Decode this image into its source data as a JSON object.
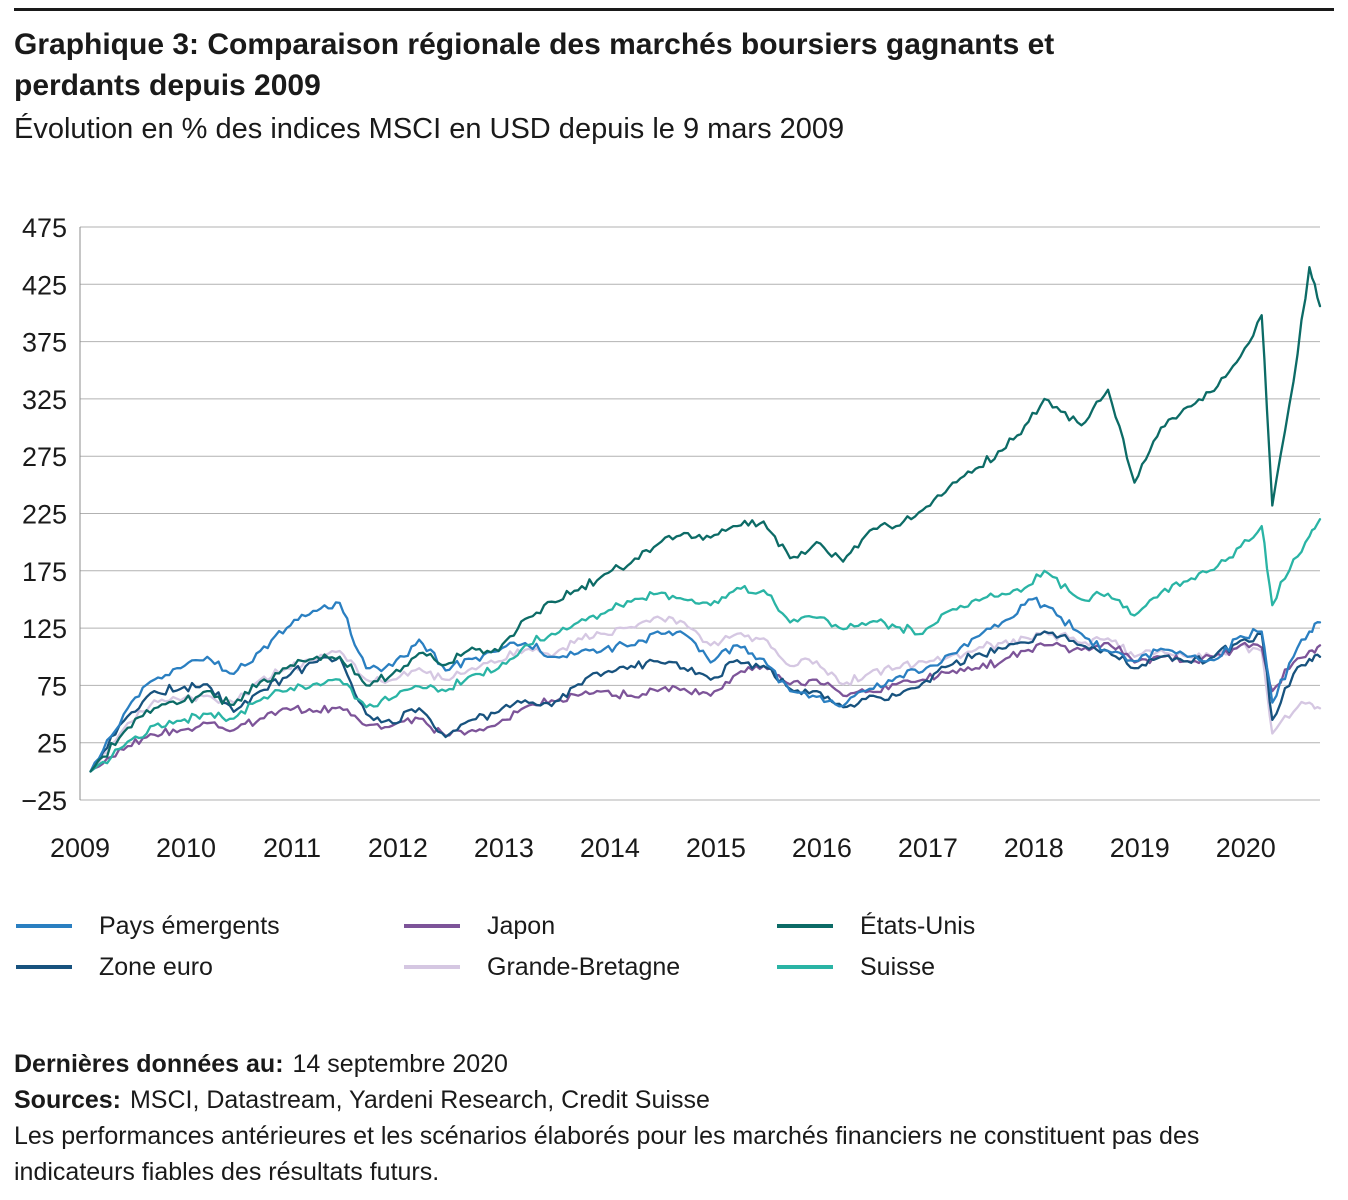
{
  "page": {
    "title_lines": [
      "Graphique 3: Comparaison régionale des marchés boursiers gagnants et",
      "perdants depuis 2009"
    ],
    "subtitle": "Évolution en % des indices MSCI en USD depuis le 9 mars 2009"
  },
  "chart_data": {
    "type": "line",
    "title": "Graphique 3: Comparaison régionale des marchés boursiers gagnants et perdants depuis 2009",
    "subtitle": "Évolution en % des indices MSCI en USD depuis le 9 mars 2009",
    "xlabel": "",
    "ylabel": "",
    "unit": "%",
    "grid": true,
    "legend_position": "bottom",
    "xlim": [
      2009,
      2020.7
    ],
    "ylim": [
      -25,
      475
    ],
    "yticks": [
      -25,
      25,
      75,
      125,
      175,
      225,
      275,
      325,
      375,
      425,
      475
    ],
    "xticks": [
      2009,
      2010,
      2011,
      2012,
      2013,
      2014,
      2015,
      2016,
      2017,
      2018,
      2019,
      2020
    ],
    "x": [
      2009.1,
      2009.45,
      2009.7,
      2009.95,
      2010.2,
      2010.45,
      2010.7,
      2010.95,
      2011.2,
      2011.45,
      2011.7,
      2011.95,
      2012.2,
      2012.45,
      2012.7,
      2012.95,
      2013.2,
      2013.45,
      2013.7,
      2013.95,
      2014.2,
      2014.45,
      2014.7,
      2014.95,
      2015.2,
      2015.45,
      2015.7,
      2015.95,
      2016.2,
      2016.45,
      2016.7,
      2016.95,
      2017.2,
      2017.45,
      2017.7,
      2017.95,
      2018.1,
      2018.45,
      2018.7,
      2018.95,
      2019.2,
      2019.45,
      2019.7,
      2019.95,
      2020.15,
      2020.25,
      2020.45,
      2020.6,
      2020.7
    ],
    "series": [
      {
        "name": "Pays émergents",
        "color": "#2a7fc1",
        "values": [
          0,
          55,
          80,
          90,
          100,
          85,
          105,
          125,
          140,
          147,
          90,
          92,
          115,
          88,
          98,
          105,
          112,
          100,
          103,
          107,
          110,
          122,
          120,
          95,
          110,
          98,
          70,
          65,
          57,
          72,
          82,
          87,
          102,
          117,
          130,
          150,
          145,
          120,
          105,
          96,
          107,
          100,
          97,
          118,
          122,
          60,
          100,
          122,
          130
        ]
      },
      {
        "name": "Zone euro",
        "color": "#17527e",
        "values": [
          0,
          48,
          70,
          72,
          76,
          52,
          70,
          82,
          95,
          100,
          50,
          42,
          55,
          30,
          45,
          52,
          62,
          57,
          76,
          86,
          92,
          96,
          90,
          80,
          97,
          92,
          72,
          70,
          56,
          66,
          66,
          77,
          92,
          102,
          107,
          112,
          122,
          110,
          105,
          90,
          100,
          96,
          100,
          114,
          120,
          45,
          85,
          98,
          100
        ]
      },
      {
        "name": "Japon",
        "color": "#7d5499",
        "values": [
          0,
          22,
          32,
          36,
          42,
          36,
          46,
          55,
          52,
          56,
          40,
          40,
          46,
          31,
          36,
          42,
          56,
          62,
          66,
          70,
          66,
          70,
          72,
          66,
          85,
          92,
          76,
          80,
          66,
          70,
          76,
          80,
          86,
          90,
          96,
          106,
          110,
          106,
          112,
          95,
          100,
          96,
          100,
          110,
          108,
          70,
          95,
          105,
          110
        ]
      },
      {
        "name": "Grande-Bretagne",
        "color": "#d5c7e2",
        "values": [
          0,
          42,
          62,
          62,
          66,
          60,
          80,
          90,
          97,
          105,
          80,
          80,
          90,
          80,
          90,
          96,
          106,
          100,
          116,
          120,
          126,
          135,
          130,
          110,
          120,
          116,
          92,
          96,
          76,
          86,
          90,
          96,
          100,
          106,
          112,
          116,
          122,
          112,
          116,
          100,
          106,
          100,
          100,
          110,
          105,
          33,
          52,
          60,
          55
        ]
      },
      {
        "name": "États-Unis",
        "color": "#0c6b66",
        "values": [
          0,
          38,
          55,
          60,
          70,
          58,
          78,
          90,
          98,
          100,
          75,
          85,
          103,
          93,
          108,
          105,
          133,
          148,
          158,
          172,
          182,
          198,
          208,
          204,
          214,
          218,
          186,
          200,
          183,
          210,
          214,
          228,
          248,
          264,
          280,
          305,
          325,
          302,
          333,
          252,
          300,
          318,
          332,
          362,
          398,
          232,
          340,
          440,
          406
        ]
      },
      {
        "name": "Suisse",
        "color": "#2ab4a5",
        "values": [
          0,
          26,
          40,
          44,
          50,
          46,
          62,
          70,
          76,
          80,
          56,
          64,
          74,
          70,
          84,
          90,
          110,
          120,
          130,
          138,
          148,
          155,
          150,
          145,
          160,
          158,
          130,
          134,
          124,
          130,
          126,
          120,
          140,
          150,
          155,
          162,
          175,
          150,
          155,
          136,
          156,
          166,
          176,
          196,
          214,
          145,
          185,
          205,
          220
        ]
      }
    ]
  },
  "footer": {
    "last_data_label": "Dernières données au:",
    "last_data_value": "14 septembre 2020",
    "sources_label": "Sources:",
    "sources_value": "MSCI, Datastream, Yardeni Research, Credit Suisse",
    "disclaimer_lines": [
      "Les performances antérieures et les scénarios élaborés pour les marchés financiers ne constituent pas des",
      "indicateurs fiables des résultats futurs."
    ]
  }
}
